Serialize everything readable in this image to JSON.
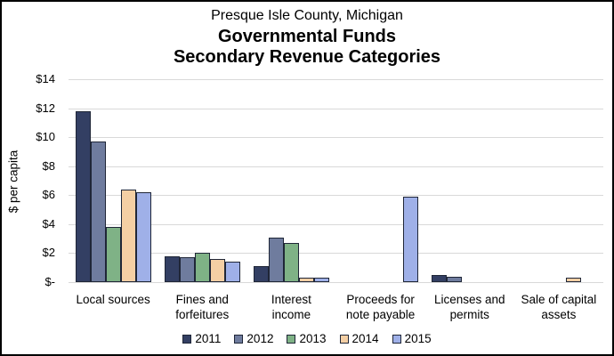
{
  "window": {
    "background_color": "#FFFFFF",
    "border_color": "#000000"
  },
  "chart_data": {
    "type": "bar",
    "title_lines": [
      "Presque Isle County, Michigan",
      "Governmental Funds",
      "Secondary Revenue Categories"
    ],
    "ylabel": "$ per capita",
    "ylim": [
      0,
      14
    ],
    "ytick_step": 2,
    "ytick_labels_bottom_to_top": [
      "$-",
      "$2",
      "$4",
      "$6",
      "$8",
      "$10",
      "$12",
      "$14"
    ],
    "grid": true,
    "grid_color": "#D9D9D9",
    "bar_border_color": "#1F2637",
    "legend_position": "bottom",
    "categories": [
      "Local sources",
      "Fines and forfeitures",
      "Interest income",
      "Proceeds for note payable",
      "Licenses and permits",
      "Sale of capital assets"
    ],
    "categories_wrapped": [
      [
        "Local sources"
      ],
      [
        "Fines and",
        "forfeitures"
      ],
      [
        "Interest",
        "income"
      ],
      [
        "Proceeds for",
        "note payable"
      ],
      [
        "Licenses and",
        "permits"
      ],
      [
        "Sale of capital",
        "assets"
      ]
    ],
    "series": [
      {
        "name": "2011",
        "color": "#333F63",
        "values": [
          11.8,
          1.8,
          1.1,
          0,
          0.5,
          0
        ]
      },
      {
        "name": "2012",
        "color": "#6F7C9E",
        "values": [
          9.7,
          1.7,
          3.1,
          0,
          0.4,
          0
        ]
      },
      {
        "name": "2013",
        "color": "#7FB286",
        "values": [
          3.8,
          2.0,
          2.7,
          0,
          0,
          0
        ]
      },
      {
        "name": "2014",
        "color": "#F4CFA4",
        "values": [
          6.4,
          1.6,
          0.3,
          0,
          0,
          0.3
        ]
      },
      {
        "name": "2015",
        "color": "#9FB0E8",
        "values": [
          6.2,
          1.4,
          0.3,
          5.9,
          0,
          0
        ]
      }
    ]
  }
}
